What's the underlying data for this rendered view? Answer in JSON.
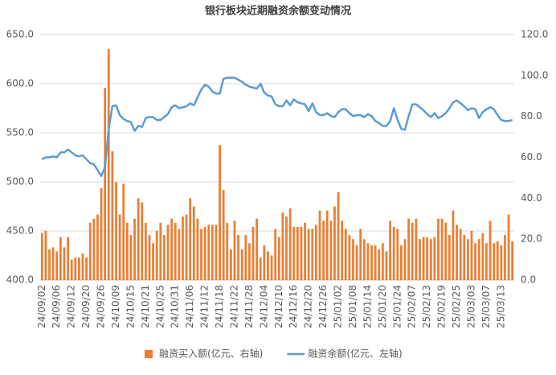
{
  "chart_data": {
    "type": "combo",
    "title": "银行板块近期融资余额变动情况",
    "categories": [
      "24/09/02",
      null,
      null,
      null,
      "24/09/06",
      null,
      null,
      null,
      "24/09/12",
      null,
      null,
      null,
      "24/09/20",
      null,
      null,
      null,
      "24/09/26",
      null,
      null,
      null,
      "24/10/09",
      null,
      null,
      null,
      "24/10/15",
      null,
      null,
      null,
      "24/10/21",
      null,
      null,
      null,
      "24/10/25",
      null,
      null,
      null,
      "24/10/31",
      null,
      null,
      null,
      "24/11/06",
      null,
      null,
      null,
      "24/11/12",
      null,
      null,
      null,
      "24/11/18",
      null,
      null,
      null,
      "24/11/22",
      null,
      null,
      null,
      "24/11/28",
      null,
      null,
      null,
      "24/12/04",
      null,
      null,
      null,
      "24/12/10",
      null,
      null,
      null,
      "24/12/16",
      null,
      null,
      null,
      "24/12/20",
      null,
      null,
      null,
      "24/12/26",
      null,
      null,
      null,
      "25/01/02",
      null,
      null,
      null,
      "25/01/08",
      null,
      null,
      null,
      "25/01/14",
      null,
      null,
      null,
      "25/01/20",
      null,
      null,
      null,
      "25/01/24",
      null,
      null,
      null,
      "25/02/07",
      null,
      null,
      null,
      "25/02/13",
      null,
      null,
      null,
      "25/02/19",
      null,
      null,
      null,
      "25/02/25",
      null,
      null,
      null,
      "25/03/03",
      null,
      null,
      null,
      "25/03/07",
      null,
      null,
      null,
      "25/03/13",
      null,
      null,
      null
    ],
    "series": [
      {
        "name": "融资买入额(亿元、右轴)",
        "type": "bar",
        "axis": "y2",
        "color": "#ED7D31",
        "values": [
          23,
          24,
          15,
          16,
          14,
          21,
          16,
          21,
          10,
          11,
          11,
          13,
          11,
          28,
          30,
          32,
          45,
          94,
          113,
          63,
          48,
          32,
          47,
          28,
          22,
          30,
          40,
          38,
          28,
          22,
          18,
          24,
          28,
          22,
          27,
          30,
          28,
          25,
          31,
          32,
          40,
          36,
          30,
          25,
          26,
          27,
          27,
          27,
          66,
          44,
          28,
          15,
          29,
          22,
          15,
          22,
          18,
          26,
          30,
          11,
          17,
          14,
          12,
          25,
          21,
          33,
          31,
          35,
          26,
          26,
          26,
          28,
          25,
          25,
          27,
          34,
          29,
          34,
          29,
          36,
          43,
          29,
          25,
          22,
          20,
          17,
          25,
          20,
          18,
          17,
          17,
          15,
          18,
          14,
          29,
          26,
          25,
          17,
          20,
          30,
          28,
          30,
          20,
          21,
          21,
          20,
          21,
          30,
          30,
          28,
          22,
          34,
          27,
          25,
          22,
          20,
          24,
          18,
          20,
          23,
          18,
          29,
          18,
          19,
          17,
          22,
          32,
          19
        ]
      },
      {
        "name": "融资余额(亿元、左轴)",
        "type": "line",
        "color": "#5B9BD5",
        "values": [
          523,
          525,
          525,
          526,
          525,
          530,
          530,
          533,
          530,
          527,
          526,
          527,
          523,
          519,
          518,
          512,
          506,
          515,
          554,
          577,
          578,
          568,
          564,
          562,
          561,
          552,
          557,
          556,
          565,
          566,
          566,
          563,
          563,
          566,
          569,
          576,
          578,
          575,
          576,
          577,
          580,
          578,
          586,
          594,
          599,
          597,
          592,
          590,
          590,
          605,
          606,
          606,
          606,
          604,
          602,
          599,
          597,
          596,
          595,
          600,
          591,
          588,
          587,
          579,
          577,
          577,
          583,
          578,
          584,
          581,
          580,
          579,
          572,
          580,
          571,
          568,
          568,
          570,
          567,
          566,
          571,
          574,
          574,
          570,
          567,
          568,
          568,
          566,
          569,
          567,
          562,
          560,
          557,
          557,
          562,
          575,
          563,
          554,
          553,
          567,
          579,
          579,
          576,
          573,
          569,
          566,
          570,
          565,
          567,
          570,
          575,
          581,
          583,
          580,
          577,
          573,
          575,
          574,
          565,
          571,
          574,
          576,
          574,
          568,
          563,
          562,
          562,
          563
        ]
      }
    ],
    "ylim": [
      400,
      650
    ],
    "yticks": [
      {
        "value": 400,
        "label": "400.0"
      },
      {
        "value": 450,
        "label": "450.0"
      },
      {
        "value": 500,
        "label": "500.0"
      },
      {
        "value": 550,
        "label": "550.0"
      },
      {
        "value": 600,
        "label": "600.0"
      },
      {
        "value": 650,
        "label": "650.0"
      }
    ],
    "y2lim": [
      0,
      120
    ],
    "y2ticks": [
      {
        "value": 0,
        "label": "0.0"
      },
      {
        "value": 20,
        "label": "20.0"
      },
      {
        "value": 40,
        "label": "40.0"
      },
      {
        "value": 60,
        "label": "60.0"
      },
      {
        "value": 80,
        "label": "80.0"
      },
      {
        "value": 100,
        "label": "100.0"
      },
      {
        "value": 120,
        "label": "120.0"
      }
    ],
    "grid": true,
    "legend": "bottom"
  }
}
